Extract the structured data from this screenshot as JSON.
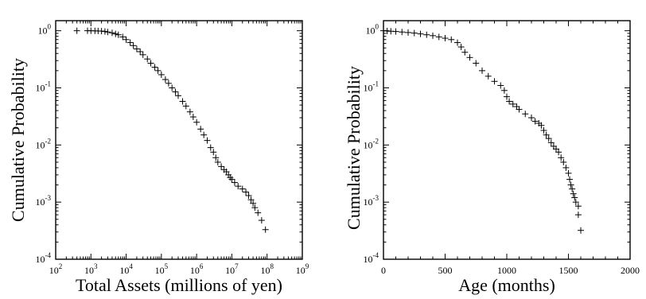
{
  "chart_data": [
    {
      "type": "scatter",
      "marker": "plus",
      "x_scale": "log",
      "y_scale": "log",
      "xlabel": "Total Assets (millions of yen)",
      "ylabel": "Cumulative Probability",
      "xlim": [
        100,
        1000000000
      ],
      "ylim": [
        0.0001,
        1.5
      ],
      "x_ticks": [
        {
          "base": "10",
          "exp": "2",
          "v": 100
        },
        {
          "base": "10",
          "exp": "3",
          "v": 1000
        },
        {
          "base": "10",
          "exp": "4",
          "v": 10000
        },
        {
          "base": "10",
          "exp": "5",
          "v": 100000
        },
        {
          "base": "10",
          "exp": "6",
          "v": 1000000
        },
        {
          "base": "10",
          "exp": "7",
          "v": 10000000
        },
        {
          "base": "10",
          "exp": "8",
          "v": 100000000
        },
        {
          "base": "10",
          "exp": "9",
          "v": 1000000000
        }
      ],
      "y_ticks": [
        {
          "base": "10",
          "exp": "-4",
          "v": 0.0001
        },
        {
          "base": "10",
          "exp": "-3",
          "v": 0.001
        },
        {
          "base": "10",
          "exp": "-2",
          "v": 0.01
        },
        {
          "base": "10",
          "exp": "-1",
          "v": 0.1
        },
        {
          "base": "10",
          "exp": "0",
          "v": 1
        }
      ],
      "points": [
        [
          400,
          1.0
        ],
        [
          800,
          1.0
        ],
        [
          1000,
          1.0
        ],
        [
          1300,
          0.995
        ],
        [
          1600,
          0.99
        ],
        [
          2000,
          0.985
        ],
        [
          2500,
          0.97
        ],
        [
          3000,
          0.95
        ],
        [
          4000,
          0.92
        ],
        [
          5000,
          0.88
        ],
        [
          6000,
          0.85
        ],
        [
          8000,
          0.78
        ],
        [
          10000,
          0.7
        ],
        [
          13000,
          0.62
        ],
        [
          16000,
          0.55
        ],
        [
          20000,
          0.48
        ],
        [
          25000,
          0.43
        ],
        [
          30000,
          0.38
        ],
        [
          40000,
          0.32
        ],
        [
          50000,
          0.27
        ],
        [
          65000,
          0.23
        ],
        [
          80000,
          0.2
        ],
        [
          100000,
          0.17
        ],
        [
          130000,
          0.14
        ],
        [
          160000,
          0.12
        ],
        [
          200000,
          0.1
        ],
        [
          250000,
          0.085
        ],
        [
          300000,
          0.073
        ],
        [
          400000,
          0.058
        ],
        [
          500000,
          0.048
        ],
        [
          650000,
          0.038
        ],
        [
          800000,
          0.031
        ],
        [
          1000000,
          0.025
        ],
        [
          1300000,
          0.019
        ],
        [
          1600000,
          0.015
        ],
        [
          2000000,
          0.012
        ],
        [
          2500000,
          0.009
        ],
        [
          3000000,
          0.0075
        ],
        [
          3500000,
          0.006
        ],
        [
          4000000,
          0.005
        ],
        [
          5000000,
          0.0042
        ],
        [
          6000000,
          0.0037
        ],
        [
          7000000,
          0.0034
        ],
        [
          8000000,
          0.003
        ],
        [
          9000000,
          0.0027
        ],
        [
          10000000,
          0.0025
        ],
        [
          12000000,
          0.0022
        ],
        [
          15000000,
          0.0019
        ],
        [
          20000000,
          0.0017
        ],
        [
          25000000,
          0.0015
        ],
        [
          30000000,
          0.0013
        ],
        [
          35000000,
          0.0011
        ],
        [
          40000000,
          0.00095
        ],
        [
          45000000,
          0.0008
        ],
        [
          55000000,
          0.00065
        ],
        [
          70000000,
          0.00048
        ],
        [
          90000000,
          0.00033
        ]
      ]
    },
    {
      "type": "scatter",
      "marker": "plus",
      "x_scale": "linear",
      "y_scale": "log",
      "xlabel": "Age (months)",
      "ylabel": "Cumulative Probability",
      "xlim": [
        0,
        2000
      ],
      "ylim": [
        0.0001,
        1.5
      ],
      "x_ticks": [
        {
          "label": "0",
          "v": 0
        },
        {
          "label": "500",
          "v": 500
        },
        {
          "label": "1000",
          "v": 1000
        },
        {
          "label": "1500",
          "v": 1500
        },
        {
          "label": "2000",
          "v": 2000
        }
      ],
      "y_ticks": [
        {
          "base": "10",
          "exp": "-4",
          "v": 0.0001
        },
        {
          "base": "10",
          "exp": "-3",
          "v": 0.001
        },
        {
          "base": "10",
          "exp": "-2",
          "v": 0.01
        },
        {
          "base": "10",
          "exp": "-1",
          "v": 0.1
        },
        {
          "base": "10",
          "exp": "0",
          "v": 1
        }
      ],
      "points": [
        [
          0,
          1.0
        ],
        [
          30,
          0.99
        ],
        [
          60,
          0.98
        ],
        [
          100,
          0.97
        ],
        [
          150,
          0.95
        ],
        [
          200,
          0.93
        ],
        [
          250,
          0.91
        ],
        [
          300,
          0.88
        ],
        [
          350,
          0.85
        ],
        [
          400,
          0.82
        ],
        [
          450,
          0.78
        ],
        [
          500,
          0.74
        ],
        [
          550,
          0.7
        ],
        [
          600,
          0.62
        ],
        [
          630,
          0.52
        ],
        [
          660,
          0.42
        ],
        [
          700,
          0.34
        ],
        [
          750,
          0.27
        ],
        [
          800,
          0.2
        ],
        [
          850,
          0.16
        ],
        [
          900,
          0.13
        ],
        [
          950,
          0.11
        ],
        [
          980,
          0.09
        ],
        [
          1000,
          0.07
        ],
        [
          1020,
          0.058
        ],
        [
          1050,
          0.052
        ],
        [
          1080,
          0.047
        ],
        [
          1100,
          0.042
        ],
        [
          1150,
          0.035
        ],
        [
          1200,
          0.03
        ],
        [
          1230,
          0.026
        ],
        [
          1260,
          0.024
        ],
        [
          1280,
          0.022
        ],
        [
          1300,
          0.018
        ],
        [
          1320,
          0.015
        ],
        [
          1340,
          0.013
        ],
        [
          1360,
          0.011
        ],
        [
          1380,
          0.0095
        ],
        [
          1400,
          0.0085
        ],
        [
          1420,
          0.0075
        ],
        [
          1440,
          0.006
        ],
        [
          1460,
          0.005
        ],
        [
          1480,
          0.004
        ],
        [
          1500,
          0.0032
        ],
        [
          1510,
          0.0025
        ],
        [
          1520,
          0.002
        ],
        [
          1530,
          0.0017
        ],
        [
          1540,
          0.0014
        ],
        [
          1550,
          0.0012
        ],
        [
          1560,
          0.001
        ],
        [
          1580,
          0.00085
        ],
        [
          1580,
          0.0006
        ],
        [
          1600,
          0.00032
        ]
      ]
    }
  ]
}
